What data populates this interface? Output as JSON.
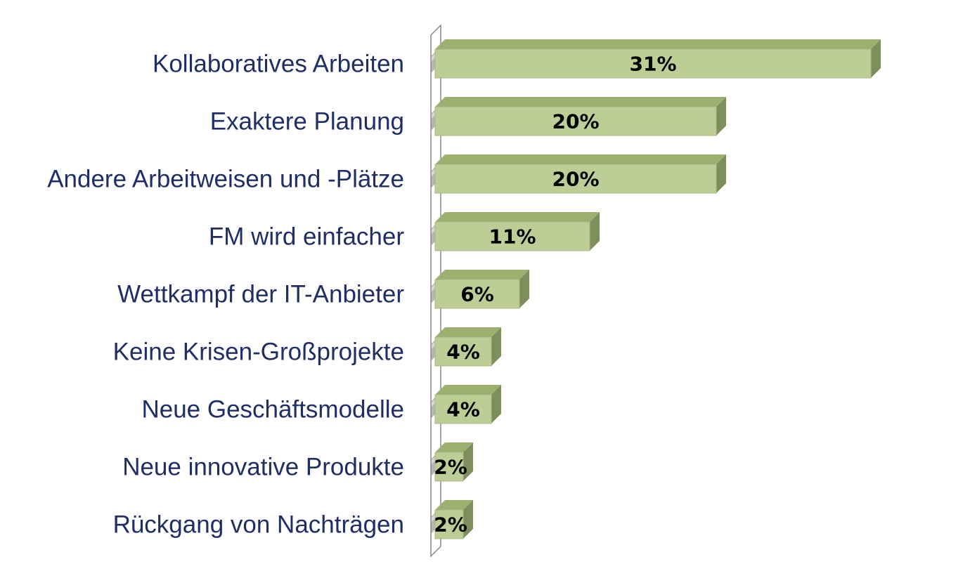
{
  "chart_data": {
    "type": "bar",
    "orientation": "horizontal",
    "style": "3d",
    "title": "",
    "xlabel": "",
    "ylabel": "",
    "categories": [
      "Kollaboratives Arbeiten",
      "Exaktere Planung",
      "Andere Arbeitweisen und -Plätze",
      "FM wird einfacher",
      "Wettkampf der IT-Anbieter",
      "Keine Krisen-Großprojekte",
      "Neue Geschäftsmodelle",
      "Neue innovative Produkte",
      "Rückgang von Nachträgen"
    ],
    "values": [
      31,
      20,
      20,
      11,
      6,
      4,
      4,
      2,
      2
    ],
    "value_labels": [
      "31%",
      "20%",
      "20%",
      "11%",
      "6%",
      "4%",
      "4%",
      "2%",
      "2%"
    ],
    "xlim": [
      0,
      31
    ],
    "grid": false,
    "legend": "none",
    "colors": {
      "bar_front": "#bccd95",
      "bar_top": "#9bb06e",
      "bar_side": "#7e8f5d",
      "bar_edge": "#a7b882",
      "category_text": "#1f2e66",
      "value_text": "#000000",
      "axis_wall": "#8a8a8a"
    }
  }
}
